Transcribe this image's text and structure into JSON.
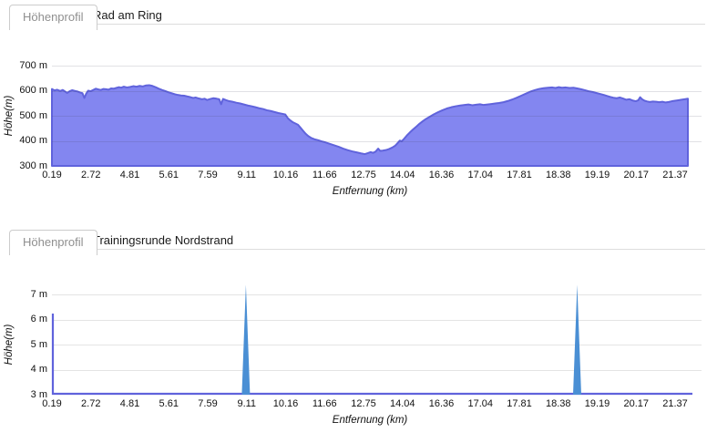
{
  "panels": [
    {
      "tab_label": "Höhenprofil",
      "title": "Rad am Ring"
    },
    {
      "tab_label": "Höhenprofil",
      "title": "Trainingsrunde Nordstrand"
    }
  ],
  "colors": {
    "area_fill": "#8386f0",
    "area_stroke": "#6063dc",
    "spike_fill": "#4a8fd4",
    "grid": "#e4e4e4",
    "tab_border": "#cccccc",
    "tab_text": "#8f8f8f",
    "text": "#111111"
  },
  "chart_data": [
    {
      "type": "area",
      "title": "Rad am Ring",
      "series_name": "Höhenprofil",
      "xlabel": "Entfernung (km)",
      "ylabel": "Höhe(m)",
      "ylim": [
        300,
        700
      ],
      "y_tick_labels": [
        "700 m",
        "600 m",
        "500 m",
        "400 m",
        "300 m"
      ],
      "x_tick_labels": [
        "0.19",
        "2.72",
        "4.81",
        "5.61",
        "7.59",
        "9.11",
        "10.16",
        "11.66",
        "12.75",
        "14.04",
        "16.36",
        "17.04",
        "17.81",
        "18.38",
        "19.19",
        "20.17",
        "21.37"
      ],
      "x_axis_type": "category (distance labels evenly spaced)",
      "grid": true,
      "profile_points_frac_m": [
        [
          0,
          607
        ],
        [
          0.004,
          601
        ],
        [
          0.008,
          604
        ],
        [
          0.013,
          599
        ],
        [
          0.017,
          603
        ],
        [
          0.021,
          596
        ],
        [
          0.024,
          591
        ],
        [
          0.028,
          598
        ],
        [
          0.032,
          602
        ],
        [
          0.036,
          599
        ],
        [
          0.04,
          597
        ],
        [
          0.044,
          593
        ],
        [
          0.048,
          590
        ],
        [
          0.051,
          571
        ],
        [
          0.054,
          589
        ],
        [
          0.057,
          600
        ],
        [
          0.061,
          598
        ],
        [
          0.065,
          603
        ],
        [
          0.069,
          608
        ],
        [
          0.073,
          605
        ],
        [
          0.077,
          603
        ],
        [
          0.081,
          607
        ],
        [
          0.085,
          606
        ],
        [
          0.089,
          604
        ],
        [
          0.093,
          609
        ],
        [
          0.097,
          608
        ],
        [
          0.101,
          611
        ],
        [
          0.105,
          614
        ],
        [
          0.109,
          612
        ],
        [
          0.113,
          616
        ],
        [
          0.118,
          613
        ],
        [
          0.123,
          615
        ],
        [
          0.128,
          618
        ],
        [
          0.133,
          616
        ],
        [
          0.138,
          619
        ],
        [
          0.143,
          617
        ],
        [
          0.148,
          621
        ],
        [
          0.153,
          622
        ],
        [
          0.158,
          619
        ],
        [
          0.163,
          614
        ],
        [
          0.168,
          608
        ],
        [
          0.173,
          603
        ],
        [
          0.178,
          599
        ],
        [
          0.183,
          594
        ],
        [
          0.188,
          590
        ],
        [
          0.193,
          586
        ],
        [
          0.198,
          583
        ],
        [
          0.203,
          581
        ],
        [
          0.208,
          580
        ],
        [
          0.213,
          577
        ],
        [
          0.218,
          574
        ],
        [
          0.222,
          571
        ],
        [
          0.226,
          573
        ],
        [
          0.231,
          569
        ],
        [
          0.236,
          566
        ],
        [
          0.24,
          568
        ],
        [
          0.244,
          563
        ],
        [
          0.249,
          567
        ],
        [
          0.254,
          570
        ],
        [
          0.259,
          568
        ],
        [
          0.263,
          566
        ],
        [
          0.266,
          546
        ],
        [
          0.269,
          567
        ],
        [
          0.274,
          562
        ],
        [
          0.279,
          558
        ],
        [
          0.284,
          556
        ],
        [
          0.29,
          552
        ],
        [
          0.296,
          549
        ],
        [
          0.302,
          545
        ],
        [
          0.308,
          541
        ],
        [
          0.314,
          538
        ],
        [
          0.32,
          534
        ],
        [
          0.326,
          530
        ],
        [
          0.332,
          527
        ],
        [
          0.338,
          522
        ],
        [
          0.344,
          519
        ],
        [
          0.35,
          515
        ],
        [
          0.356,
          511
        ],
        [
          0.362,
          508
        ],
        [
          0.367,
          505
        ],
        [
          0.371,
          490
        ],
        [
          0.375,
          481
        ],
        [
          0.379,
          474
        ],
        [
          0.383,
          469
        ],
        [
          0.387,
          464
        ],
        [
          0.391,
          452
        ],
        [
          0.395,
          440
        ],
        [
          0.399,
          428
        ],
        [
          0.403,
          419
        ],
        [
          0.408,
          411
        ],
        [
          0.413,
          406
        ],
        [
          0.418,
          403
        ],
        [
          0.424,
          398
        ],
        [
          0.43,
          394
        ],
        [
          0.437,
          388
        ],
        [
          0.444,
          382
        ],
        [
          0.451,
          376
        ],
        [
          0.458,
          369
        ],
        [
          0.465,
          363
        ],
        [
          0.472,
          358
        ],
        [
          0.479,
          354
        ],
        [
          0.486,
          350
        ],
        [
          0.492,
          347
        ],
        [
          0.497,
          351
        ],
        [
          0.501,
          355
        ],
        [
          0.505,
          352
        ],
        [
          0.509,
          357
        ],
        [
          0.513,
          369
        ],
        [
          0.516,
          360
        ],
        [
          0.52,
          361
        ],
        [
          0.525,
          363
        ],
        [
          0.53,
          367
        ],
        [
          0.535,
          373
        ],
        [
          0.54,
          381
        ],
        [
          0.544,
          392
        ],
        [
          0.547,
          401
        ],
        [
          0.55,
          398
        ],
        [
          0.554,
          409
        ],
        [
          0.558,
          421
        ],
        [
          0.563,
          434
        ],
        [
          0.568,
          446
        ],
        [
          0.573,
          457
        ],
        [
          0.578,
          468
        ],
        [
          0.583,
          478
        ],
        [
          0.588,
          487
        ],
        [
          0.594,
          496
        ],
        [
          0.6,
          505
        ],
        [
          0.607,
          514
        ],
        [
          0.614,
          522
        ],
        [
          0.621,
          529
        ],
        [
          0.628,
          534
        ],
        [
          0.635,
          538
        ],
        [
          0.642,
          541
        ],
        [
          0.649,
          543
        ],
        [
          0.655,
          545
        ],
        [
          0.661,
          542
        ],
        [
          0.667,
          544
        ],
        [
          0.673,
          546
        ],
        [
          0.679,
          543
        ],
        [
          0.685,
          545
        ],
        [
          0.691,
          547
        ],
        [
          0.697,
          549
        ],
        [
          0.703,
          551
        ],
        [
          0.71,
          554
        ],
        [
          0.717,
          559
        ],
        [
          0.724,
          565
        ],
        [
          0.731,
          572
        ],
        [
          0.738,
          580
        ],
        [
          0.745,
          588
        ],
        [
          0.752,
          596
        ],
        [
          0.759,
          602
        ],
        [
          0.766,
          607
        ],
        [
          0.773,
          610
        ],
        [
          0.78,
          612
        ],
        [
          0.787,
          613
        ],
        [
          0.792,
          611
        ],
        [
          0.797,
          614
        ],
        [
          0.802,
          612
        ],
        [
          0.808,
          613
        ],
        [
          0.814,
          611
        ],
        [
          0.82,
          612
        ],
        [
          0.826,
          609
        ],
        [
          0.832,
          606
        ],
        [
          0.838,
          602
        ],
        [
          0.844,
          598
        ],
        [
          0.85,
          595
        ],
        [
          0.856,
          591
        ],
        [
          0.862,
          587
        ],
        [
          0.868,
          583
        ],
        [
          0.873,
          579
        ],
        [
          0.878,
          575
        ],
        [
          0.883,
          572
        ],
        [
          0.888,
          570
        ],
        [
          0.893,
          573
        ],
        [
          0.898,
          569
        ],
        [
          0.903,
          564
        ],
        [
          0.908,
          566
        ],
        [
          0.913,
          561
        ],
        [
          0.918,
          558
        ],
        [
          0.922,
          562
        ],
        [
          0.925,
          574
        ],
        [
          0.928,
          566
        ],
        [
          0.932,
          560
        ],
        [
          0.936,
          557
        ],
        [
          0.94,
          555
        ],
        [
          0.945,
          557
        ],
        [
          0.95,
          556
        ],
        [
          0.955,
          554
        ],
        [
          0.96,
          556
        ],
        [
          0.965,
          553
        ],
        [
          0.97,
          555
        ],
        [
          0.975,
          558
        ],
        [
          0.98,
          560
        ],
        [
          0.985,
          562
        ],
        [
          0.99,
          564
        ],
        [
          0.995,
          566
        ],
        [
          1,
          568
        ]
      ]
    },
    {
      "type": "area",
      "title": "Trainingsrunde Nordstrand",
      "series_name": "Höhenprofil",
      "xlabel": "Entfernung (km)",
      "ylabel": "Höhe(m)",
      "ylim": [
        3,
        7
      ],
      "y_tick_labels": [
        "7 m",
        "6 m",
        "5 m",
        "4 m",
        "3 m"
      ],
      "x_tick_labels": [
        "0.19",
        "2.72",
        "4.81",
        "5.61",
        "7.59",
        "9.11",
        "10.16",
        "11.66",
        "12.75",
        "14.04",
        "16.36",
        "17.04",
        "17.81",
        "18.38",
        "19.19",
        "20.17",
        "21.37"
      ],
      "x_axis_type": "category (distance labels evenly spaced)",
      "grid": true,
      "baseline_m": 3,
      "start_point_m": 6.2,
      "spikes": [
        {
          "x_frac": 0.305,
          "peak_m": 7.35
        },
        {
          "x_frac": 0.826,
          "peak_m": 7.35
        }
      ]
    }
  ]
}
